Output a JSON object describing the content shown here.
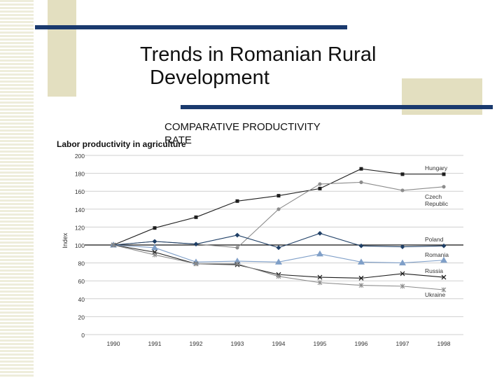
{
  "slide": {
    "title_line1": "Trends in Romanian Rural",
    "title_line2": "Development",
    "subtitle": "COMPARATIVE PRODUCTIVITY RATE"
  },
  "chart_data": {
    "type": "line",
    "title": "Labor productivity in agriculture",
    "xlabel": "",
    "ylabel": "Index",
    "ylim": [
      0,
      200
    ],
    "yticks": [
      0,
      20,
      40,
      60,
      80,
      100,
      120,
      140,
      160,
      180,
      200
    ],
    "x": [
      "1990",
      "1991",
      "1992",
      "1993",
      "1994",
      "1995",
      "1996",
      "1997",
      "1998"
    ],
    "reference_line": 100,
    "grid": true,
    "legend": "inline labels at right end of lines",
    "series": [
      {
        "name": "Hungary",
        "color": "#1e1e1e",
        "marker": "square",
        "values": [
          100,
          119,
          131,
          149,
          155,
          163,
          185,
          179,
          179
        ]
      },
      {
        "name": "Czech Republic",
        "color": "#8c8c8c",
        "marker": "circle",
        "values": [
          100,
          104,
          101,
          97,
          140,
          168,
          170,
          161,
          165
        ]
      },
      {
        "name": "Poland",
        "color": "#1f3f66",
        "marker": "diamond",
        "values": [
          100,
          104,
          101,
          111,
          97,
          113,
          99,
          98,
          99
        ]
      },
      {
        "name": "Romania",
        "color": "#7f9fc8",
        "marker": "triangle",
        "values": [
          100,
          97,
          81,
          82,
          81,
          90,
          81,
          80,
          83
        ]
      },
      {
        "name": "Russia",
        "color": "#1e1e1e",
        "marker": "x",
        "values": [
          100,
          92,
          79,
          78,
          67,
          64,
          63,
          68,
          64
        ]
      },
      {
        "name": "Ukraine",
        "color": "#8c8c8c",
        "marker": "star",
        "values": [
          100,
          89,
          79,
          79,
          65,
          58,
          55,
          54,
          50
        ]
      }
    ],
    "labels": [
      {
        "series": "Hungary",
        "lines": [
          "Hungary"
        ]
      },
      {
        "series": "Czech Republic",
        "lines": [
          "Czech",
          "Republic"
        ]
      },
      {
        "series": "Poland",
        "lines": [
          "Poland"
        ]
      },
      {
        "series": "Romania",
        "lines": [
          "Romania"
        ]
      },
      {
        "series": "Russia",
        "lines": [
          "Russia"
        ]
      },
      {
        "series": "Ukraine",
        "lines": [
          "Ukraine"
        ]
      }
    ]
  }
}
